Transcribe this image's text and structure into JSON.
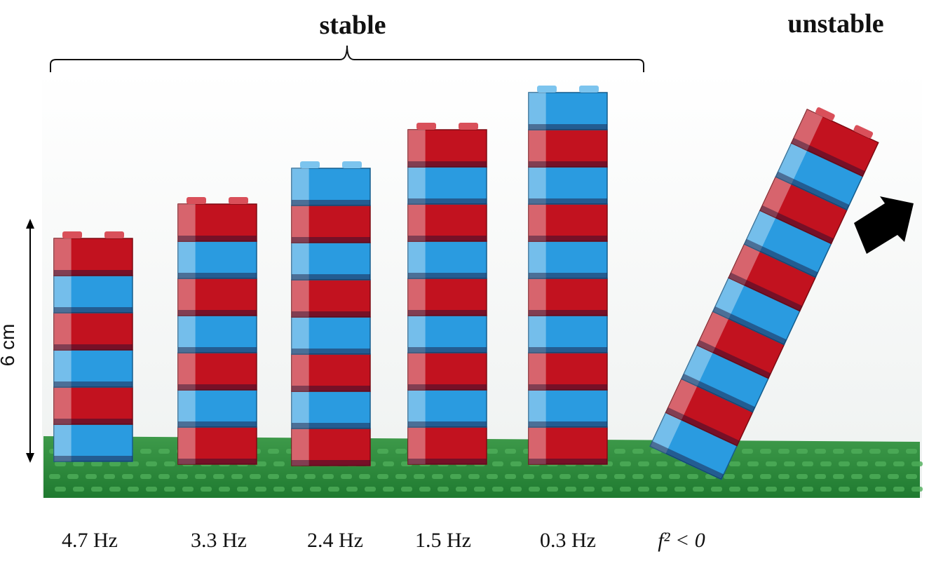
{
  "header": {
    "stable": "stable",
    "unstable": "unstable"
  },
  "scale_label": "6 cm",
  "labels": [
    "4.7 Hz",
    "3.3 Hz",
    "2.4 Hz",
    "1.5 Hz",
    "0.3 Hz",
    "f² < 0"
  ]
}
